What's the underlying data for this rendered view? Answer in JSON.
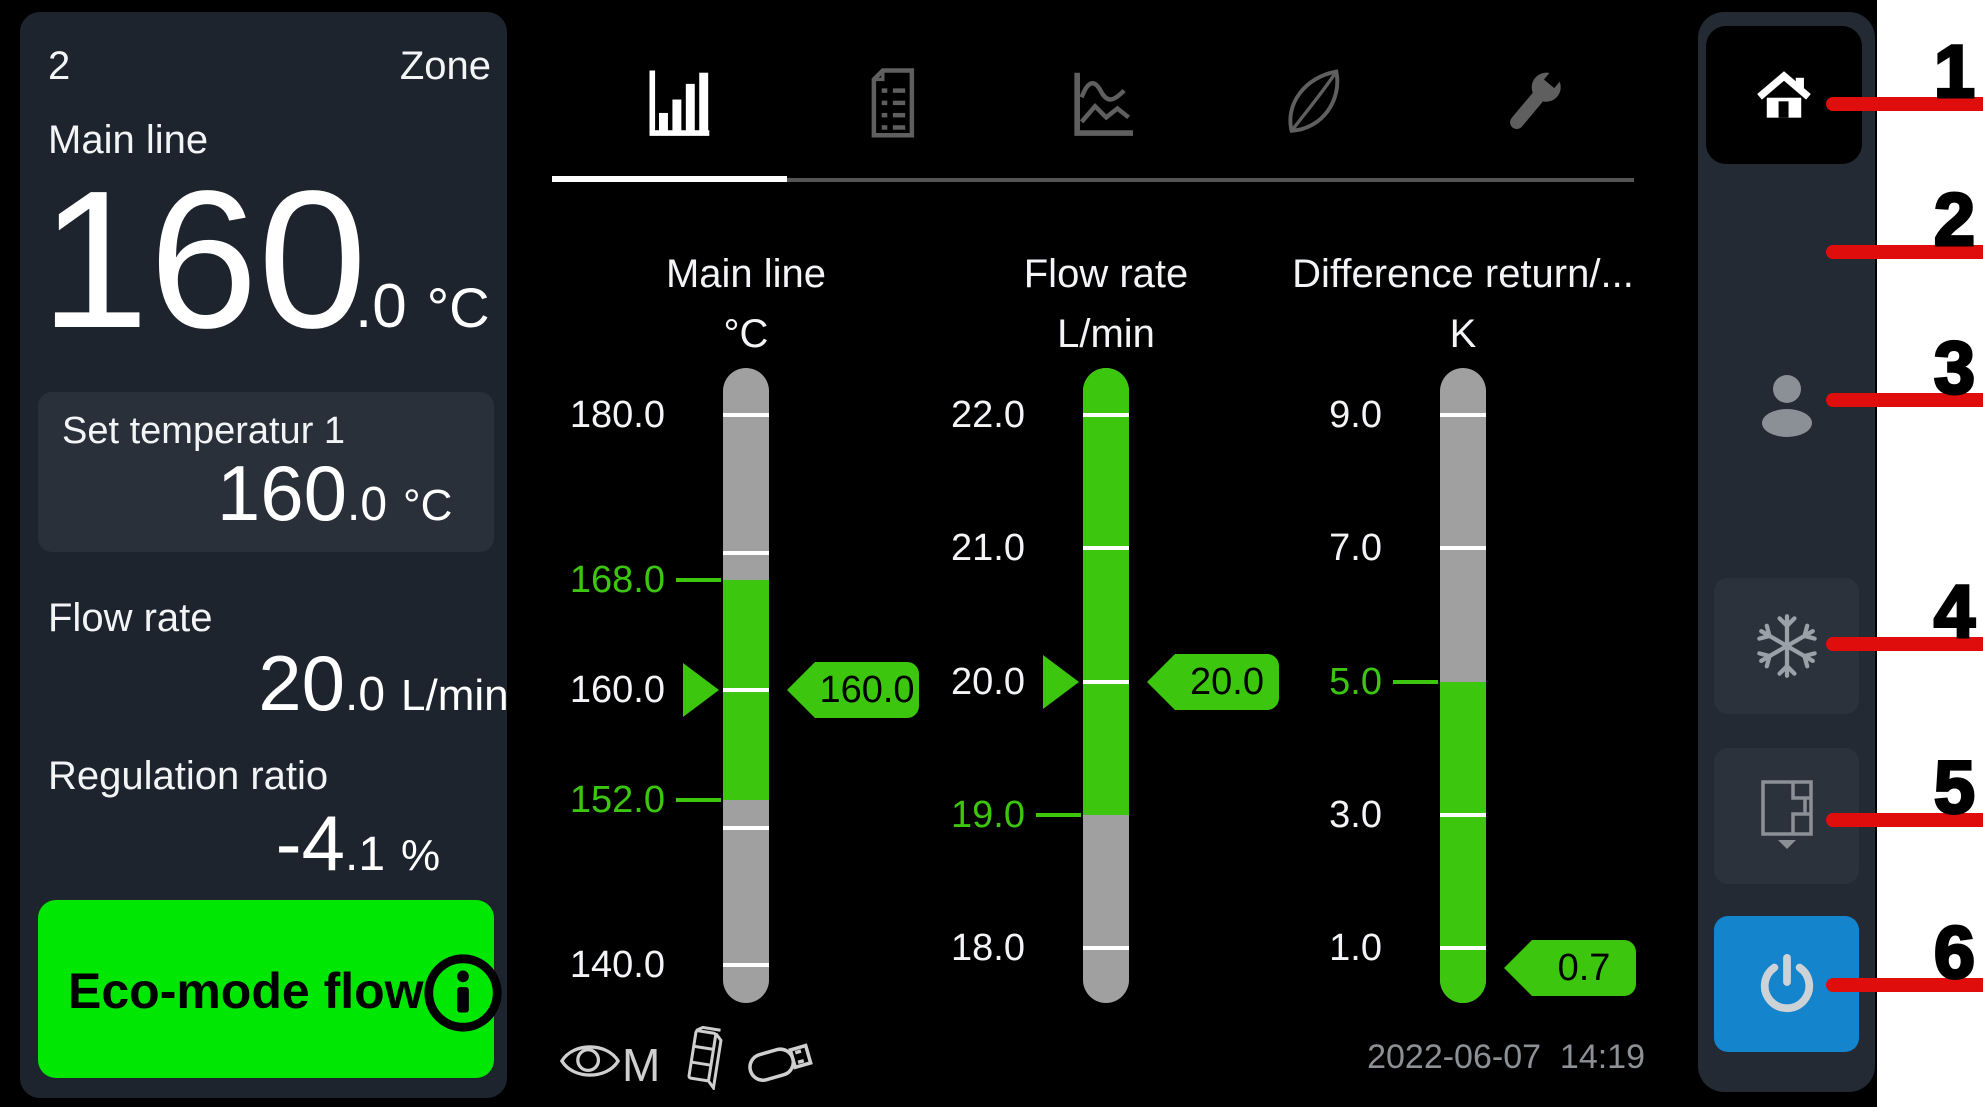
{
  "left_panel": {
    "zone_number": "2",
    "zone_label": "Zone",
    "main_line": {
      "label": "Main line",
      "value": "160",
      "decimal": ".0",
      "unit": "°C"
    },
    "set_temperature": {
      "label": "Set temperatur 1",
      "value": "160",
      "decimal": ".0",
      "unit": "°C"
    },
    "flow_rate": {
      "label": "Flow rate",
      "value": "20",
      "decimal": ".0",
      "unit": "L/min"
    },
    "regulation_ratio": {
      "label": "Regulation ratio",
      "value": "-4",
      "decimal": ".1",
      "unit": "%"
    },
    "eco_button": {
      "label": "Eco-mode flow"
    }
  },
  "tabs": [
    {
      "name": "gauges-tab",
      "icon": "bar-chart-icon",
      "active": true
    },
    {
      "name": "report-tab",
      "icon": "report-icon",
      "active": false
    },
    {
      "name": "curves-tab",
      "icon": "line-chart-icon",
      "active": false
    },
    {
      "name": "eco-tab",
      "icon": "leaf-icon",
      "active": false
    },
    {
      "name": "service-tab",
      "icon": "wrench-icon",
      "active": false
    }
  ],
  "status_bar": {
    "monitoring_label": "M",
    "timestamp": "2022-06-07  14:19"
  },
  "sidebar": {
    "items": [
      {
        "name": "home",
        "icon": "home-icon",
        "active": true
      },
      {
        "name": "menu",
        "icon": "menu-icon"
      },
      {
        "name": "user",
        "icon": "user-icon"
      },
      {
        "name": "cooling",
        "icon": "snowflake-icon"
      },
      {
        "name": "mold-zones",
        "icon": "mold-zone-icon"
      },
      {
        "name": "power",
        "icon": "power-icon"
      }
    ]
  },
  "annotations": {
    "numbers": [
      "1",
      "2",
      "3",
      "4",
      "5",
      "6"
    ]
  },
  "colors": {
    "gauge_green": "#3cc60e",
    "eco_green": "#00e704",
    "annotation_red": "#e00d0d",
    "power_blue": "#1484cc",
    "tube_gray": "#a0a0a0"
  },
  "chart_data": {
    "type": "gauges",
    "gauges": [
      {
        "name": "Main line",
        "unit": "°C",
        "top_value": 180,
        "bottom_value": 140,
        "ticks": [
          {
            "v": 180,
            "label": "180.0"
          },
          {
            "v": 170
          },
          {
            "v": 160,
            "label": "160.0"
          },
          {
            "v": 150
          },
          {
            "v": 140,
            "label": "140.0"
          }
        ],
        "green_ticks": [
          {
            "v": 168,
            "label": "168.0"
          },
          {
            "v": 152,
            "label": "152.0"
          }
        ],
        "band": {
          "from": 152,
          "to": 168
        },
        "marker": 160.0,
        "tag": {
          "v": 160.0,
          "label": "160.0"
        }
      },
      {
        "name": "Flow rate",
        "unit": "L/min",
        "top_value": 22,
        "bottom_value": 18,
        "ticks": [
          {
            "v": 22,
            "label": "22.0"
          },
          {
            "v": 21,
            "label": "21.0"
          },
          {
            "v": 20,
            "label": "20.0"
          },
          {
            "v": 18,
            "label": "18.0"
          }
        ],
        "green_ticks": [
          {
            "v": 19,
            "label": "19.0"
          }
        ],
        "band": {
          "from": 19,
          "to": null
        },
        "marker": 20.0,
        "tag": {
          "v": 20.0,
          "label": "20.0"
        }
      },
      {
        "name": "Difference return/...",
        "unit": "K",
        "top_value": 9,
        "bottom_value": 1,
        "ticks": [
          {
            "v": 9,
            "label": "9.0"
          },
          {
            "v": 7,
            "label": "7.0"
          },
          {
            "v": 3,
            "label": "3.0"
          },
          {
            "v": 1,
            "label": "1.0"
          }
        ],
        "green_ticks": [
          {
            "v": 5,
            "label": "5.0"
          }
        ],
        "band": {
          "from": null,
          "to": 5
        },
        "marker": null,
        "tag": {
          "v": 0.7,
          "label": "0.7"
        }
      }
    ]
  }
}
